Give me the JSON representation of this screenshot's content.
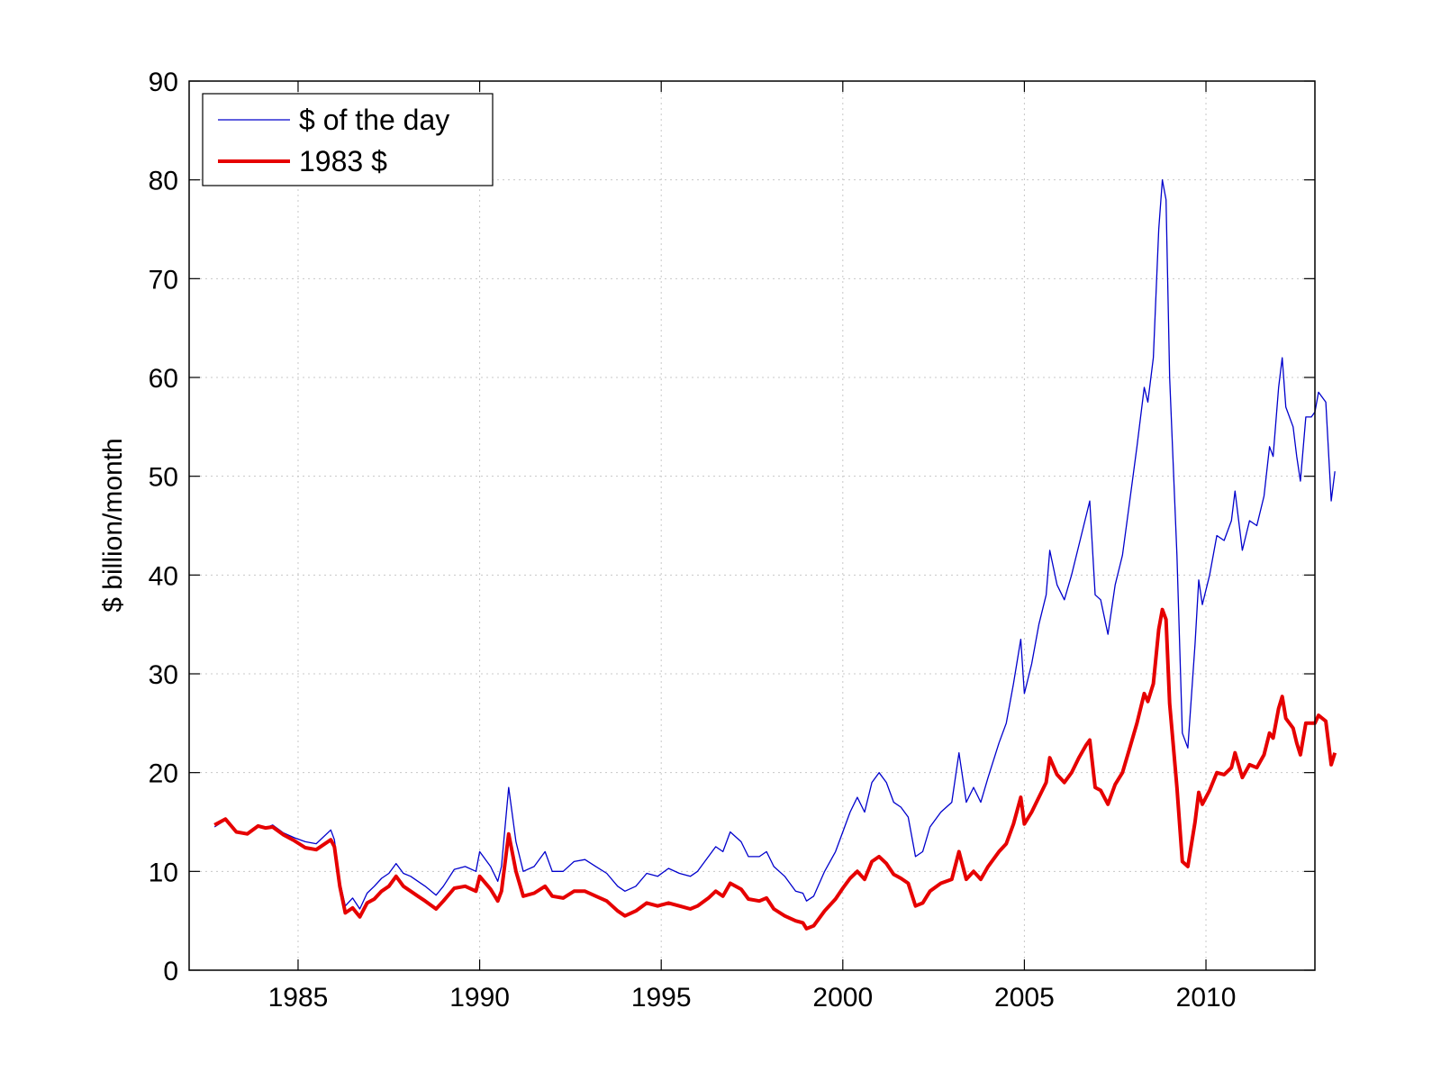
{
  "chart_data": {
    "type": "line",
    "title": "",
    "xlabel": "",
    "ylabel": "$ billion/month",
    "xlim": [
      1982.0,
      2013.0
    ],
    "ylim": [
      0,
      90
    ],
    "x_ticks": [
      1985,
      1990,
      1995,
      2000,
      2005,
      2010
    ],
    "y_ticks": [
      0,
      10,
      20,
      30,
      40,
      50,
      60,
      70,
      80,
      90
    ],
    "grid": true,
    "legend_position": "top-left",
    "colors": {
      "nominal": "#0000cc",
      "real": "#e60000",
      "axis": "#000000"
    },
    "series": [
      {
        "name": "$ of the day",
        "color": "#0000cc",
        "points": [
          [
            1982.7,
            14.5
          ],
          [
            1983.0,
            15.2
          ],
          [
            1983.3,
            14.0
          ],
          [
            1983.6,
            13.8
          ],
          [
            1983.9,
            14.6
          ],
          [
            1984.1,
            14.4
          ],
          [
            1984.3,
            14.7
          ],
          [
            1984.6,
            13.9
          ],
          [
            1984.9,
            13.4
          ],
          [
            1985.2,
            13.0
          ],
          [
            1985.5,
            12.8
          ],
          [
            1985.9,
            14.2
          ],
          [
            1986.0,
            13.2
          ],
          [
            1986.15,
            9.0
          ],
          [
            1986.3,
            6.5
          ],
          [
            1986.5,
            7.3
          ],
          [
            1986.7,
            6.2
          ],
          [
            1986.9,
            7.8
          ],
          [
            1987.1,
            8.5
          ],
          [
            1987.3,
            9.3
          ],
          [
            1987.5,
            9.8
          ],
          [
            1987.7,
            10.8
          ],
          [
            1987.9,
            9.8
          ],
          [
            1988.1,
            9.5
          ],
          [
            1988.3,
            9.0
          ],
          [
            1988.5,
            8.5
          ],
          [
            1988.8,
            7.6
          ],
          [
            1989.0,
            8.5
          ],
          [
            1989.3,
            10.2
          ],
          [
            1989.6,
            10.5
          ],
          [
            1989.9,
            10.0
          ],
          [
            1990.0,
            12.0
          ],
          [
            1990.3,
            10.5
          ],
          [
            1990.5,
            9.0
          ],
          [
            1990.6,
            10.5
          ],
          [
            1990.8,
            18.5
          ],
          [
            1991.0,
            13.0
          ],
          [
            1991.2,
            10.0
          ],
          [
            1991.5,
            10.5
          ],
          [
            1991.8,
            12.0
          ],
          [
            1992.0,
            10.0
          ],
          [
            1992.3,
            10.0
          ],
          [
            1992.6,
            11.0
          ],
          [
            1992.9,
            11.2
          ],
          [
            1993.2,
            10.5
          ],
          [
            1993.5,
            9.8
          ],
          [
            1993.8,
            8.5
          ],
          [
            1994.0,
            8.0
          ],
          [
            1994.3,
            8.5
          ],
          [
            1994.6,
            9.8
          ],
          [
            1994.9,
            9.5
          ],
          [
            1995.2,
            10.3
          ],
          [
            1995.5,
            9.8
          ],
          [
            1995.8,
            9.5
          ],
          [
            1996.0,
            10.0
          ],
          [
            1996.3,
            11.5
          ],
          [
            1996.5,
            12.5
          ],
          [
            1996.7,
            12.0
          ],
          [
            1996.9,
            14.0
          ],
          [
            1997.2,
            13.0
          ],
          [
            1997.4,
            11.5
          ],
          [
            1997.7,
            11.5
          ],
          [
            1997.9,
            12.0
          ],
          [
            1998.1,
            10.5
          ],
          [
            1998.4,
            9.5
          ],
          [
            1998.7,
            8.0
          ],
          [
            1998.9,
            7.8
          ],
          [
            1999.0,
            7.0
          ],
          [
            1999.2,
            7.5
          ],
          [
            1999.5,
            10.0
          ],
          [
            1999.8,
            12.0
          ],
          [
            2000.0,
            14.0
          ],
          [
            2000.2,
            16.0
          ],
          [
            2000.4,
            17.5
          ],
          [
            2000.6,
            16.0
          ],
          [
            2000.8,
            19.0
          ],
          [
            2001.0,
            20.0
          ],
          [
            2001.2,
            19.0
          ],
          [
            2001.4,
            17.0
          ],
          [
            2001.6,
            16.5
          ],
          [
            2001.8,
            15.5
          ],
          [
            2002.0,
            11.5
          ],
          [
            2002.2,
            12.0
          ],
          [
            2002.4,
            14.5
          ],
          [
            2002.7,
            16.0
          ],
          [
            2003.0,
            17.0
          ],
          [
            2003.2,
            22.0
          ],
          [
            2003.4,
            17.0
          ],
          [
            2003.6,
            18.5
          ],
          [
            2003.8,
            17.0
          ],
          [
            2004.0,
            19.5
          ],
          [
            2004.3,
            23.0
          ],
          [
            2004.5,
            25.0
          ],
          [
            2004.7,
            29.0
          ],
          [
            2004.9,
            33.5
          ],
          [
            2005.0,
            28.0
          ],
          [
            2005.2,
            31.0
          ],
          [
            2005.4,
            35.0
          ],
          [
            2005.6,
            38.0
          ],
          [
            2005.7,
            42.5
          ],
          [
            2005.9,
            39.0
          ],
          [
            2006.1,
            37.5
          ],
          [
            2006.3,
            40.0
          ],
          [
            2006.5,
            43.0
          ],
          [
            2006.7,
            46.0
          ],
          [
            2006.8,
            47.5
          ],
          [
            2006.95,
            38.0
          ],
          [
            2007.1,
            37.5
          ],
          [
            2007.3,
            34.0
          ],
          [
            2007.5,
            39.0
          ],
          [
            2007.7,
            42.0
          ],
          [
            2007.9,
            47.5
          ],
          [
            2008.1,
            53.0
          ],
          [
            2008.3,
            59.0
          ],
          [
            2008.4,
            57.5
          ],
          [
            2008.55,
            62.0
          ],
          [
            2008.7,
            75.0
          ],
          [
            2008.8,
            80.0
          ],
          [
            2008.9,
            78.0
          ],
          [
            2009.0,
            60.0
          ],
          [
            2009.2,
            42.0
          ],
          [
            2009.35,
            24.0
          ],
          [
            2009.5,
            22.5
          ],
          [
            2009.7,
            33.0
          ],
          [
            2009.8,
            39.5
          ],
          [
            2009.9,
            37.0
          ],
          [
            2010.1,
            40.0
          ],
          [
            2010.3,
            44.0
          ],
          [
            2010.5,
            43.5
          ],
          [
            2010.7,
            45.5
          ],
          [
            2010.8,
            48.5
          ],
          [
            2011.0,
            42.5
          ],
          [
            2011.2,
            45.5
          ],
          [
            2011.4,
            45.0
          ],
          [
            2011.6,
            48.0
          ],
          [
            2011.75,
            53.0
          ],
          [
            2011.85,
            52.0
          ],
          [
            2012.0,
            59.0
          ],
          [
            2012.1,
            62.0
          ],
          [
            2012.2,
            57.0
          ],
          [
            2012.4,
            55.0
          ],
          [
            2012.5,
            52.0
          ],
          [
            2012.6,
            49.5
          ],
          [
            2012.75,
            56.0
          ],
          [
            2012.9,
            56.0
          ],
          [
            2013.0,
            56.5
          ],
          [
            2013.1,
            58.5
          ],
          [
            2013.3,
            57.5
          ],
          [
            2013.45,
            47.5
          ],
          [
            2013.55,
            50.5
          ]
        ]
      },
      {
        "name": "1983 $",
        "color": "#e60000",
        "points": [
          [
            1982.7,
            14.7
          ],
          [
            1983.0,
            15.3
          ],
          [
            1983.3,
            14.0
          ],
          [
            1983.6,
            13.8
          ],
          [
            1983.9,
            14.6
          ],
          [
            1984.1,
            14.4
          ],
          [
            1984.3,
            14.5
          ],
          [
            1984.6,
            13.7
          ],
          [
            1984.9,
            13.1
          ],
          [
            1985.2,
            12.4
          ],
          [
            1985.5,
            12.2
          ],
          [
            1985.9,
            13.2
          ],
          [
            1986.0,
            12.5
          ],
          [
            1986.15,
            8.5
          ],
          [
            1986.3,
            5.8
          ],
          [
            1986.5,
            6.3
          ],
          [
            1986.7,
            5.4
          ],
          [
            1986.9,
            6.8
          ],
          [
            1987.1,
            7.2
          ],
          [
            1987.3,
            8.0
          ],
          [
            1987.5,
            8.5
          ],
          [
            1987.7,
            9.5
          ],
          [
            1987.9,
            8.5
          ],
          [
            1988.1,
            8.0
          ],
          [
            1988.3,
            7.5
          ],
          [
            1988.5,
            7.0
          ],
          [
            1988.8,
            6.2
          ],
          [
            1989.0,
            7.0
          ],
          [
            1989.3,
            8.3
          ],
          [
            1989.6,
            8.5
          ],
          [
            1989.9,
            8.0
          ],
          [
            1990.0,
            9.5
          ],
          [
            1990.3,
            8.2
          ],
          [
            1990.5,
            7.0
          ],
          [
            1990.6,
            8.0
          ],
          [
            1990.8,
            13.8
          ],
          [
            1991.0,
            10.0
          ],
          [
            1991.2,
            7.5
          ],
          [
            1991.5,
            7.8
          ],
          [
            1991.8,
            8.5
          ],
          [
            1992.0,
            7.5
          ],
          [
            1992.3,
            7.3
          ],
          [
            1992.6,
            8.0
          ],
          [
            1992.9,
            8.0
          ],
          [
            1993.2,
            7.5
          ],
          [
            1993.5,
            7.0
          ],
          [
            1993.8,
            6.0
          ],
          [
            1994.0,
            5.5
          ],
          [
            1994.3,
            6.0
          ],
          [
            1994.6,
            6.8
          ],
          [
            1994.9,
            6.5
          ],
          [
            1995.2,
            6.8
          ],
          [
            1995.5,
            6.5
          ],
          [
            1995.8,
            6.2
          ],
          [
            1996.0,
            6.5
          ],
          [
            1996.3,
            7.3
          ],
          [
            1996.5,
            8.0
          ],
          [
            1996.7,
            7.5
          ],
          [
            1996.9,
            8.8
          ],
          [
            1997.2,
            8.2
          ],
          [
            1997.4,
            7.2
          ],
          [
            1997.7,
            7.0
          ],
          [
            1997.9,
            7.3
          ],
          [
            1998.1,
            6.2
          ],
          [
            1998.4,
            5.5
          ],
          [
            1998.7,
            5.0
          ],
          [
            1998.9,
            4.8
          ],
          [
            1999.0,
            4.2
          ],
          [
            1999.2,
            4.5
          ],
          [
            1999.5,
            6.0
          ],
          [
            1999.8,
            7.2
          ],
          [
            2000.0,
            8.3
          ],
          [
            2000.2,
            9.3
          ],
          [
            2000.4,
            10.0
          ],
          [
            2000.6,
            9.2
          ],
          [
            2000.8,
            11.0
          ],
          [
            2001.0,
            11.5
          ],
          [
            2001.2,
            10.8
          ],
          [
            2001.4,
            9.7
          ],
          [
            2001.6,
            9.3
          ],
          [
            2001.8,
            8.8
          ],
          [
            2002.0,
            6.5
          ],
          [
            2002.2,
            6.8
          ],
          [
            2002.4,
            8.0
          ],
          [
            2002.7,
            8.8
          ],
          [
            2003.0,
            9.2
          ],
          [
            2003.2,
            12.0
          ],
          [
            2003.4,
            9.2
          ],
          [
            2003.6,
            10.0
          ],
          [
            2003.8,
            9.2
          ],
          [
            2004.0,
            10.5
          ],
          [
            2004.3,
            12.0
          ],
          [
            2004.5,
            12.8
          ],
          [
            2004.7,
            14.8
          ],
          [
            2004.9,
            17.5
          ],
          [
            2005.0,
            14.8
          ],
          [
            2005.2,
            16.0
          ],
          [
            2005.4,
            17.5
          ],
          [
            2005.6,
            19.0
          ],
          [
            2005.7,
            21.5
          ],
          [
            2005.9,
            19.8
          ],
          [
            2006.1,
            19.0
          ],
          [
            2006.3,
            20.0
          ],
          [
            2006.5,
            21.5
          ],
          [
            2006.7,
            22.8
          ],
          [
            2006.8,
            23.3
          ],
          [
            2006.95,
            18.5
          ],
          [
            2007.1,
            18.2
          ],
          [
            2007.3,
            16.8
          ],
          [
            2007.5,
            18.8
          ],
          [
            2007.7,
            20.0
          ],
          [
            2007.9,
            22.5
          ],
          [
            2008.1,
            25.0
          ],
          [
            2008.3,
            28.0
          ],
          [
            2008.4,
            27.2
          ],
          [
            2008.55,
            29.0
          ],
          [
            2008.7,
            34.5
          ],
          [
            2008.8,
            36.5
          ],
          [
            2008.9,
            35.5
          ],
          [
            2009.0,
            27.0
          ],
          [
            2009.2,
            18.5
          ],
          [
            2009.35,
            11.0
          ],
          [
            2009.5,
            10.5
          ],
          [
            2009.7,
            15.0
          ],
          [
            2009.8,
            18.0
          ],
          [
            2009.9,
            16.8
          ],
          [
            2010.1,
            18.2
          ],
          [
            2010.3,
            20.0
          ],
          [
            2010.5,
            19.8
          ],
          [
            2010.7,
            20.5
          ],
          [
            2010.8,
            22.0
          ],
          [
            2011.0,
            19.5
          ],
          [
            2011.2,
            20.8
          ],
          [
            2011.4,
            20.5
          ],
          [
            2011.6,
            21.8
          ],
          [
            2011.75,
            24.0
          ],
          [
            2011.85,
            23.5
          ],
          [
            2012.0,
            26.5
          ],
          [
            2012.1,
            27.7
          ],
          [
            2012.2,
            25.5
          ],
          [
            2012.4,
            24.5
          ],
          [
            2012.5,
            23.0
          ],
          [
            2012.6,
            21.8
          ],
          [
            2012.75,
            25.0
          ],
          [
            2012.9,
            25.0
          ],
          [
            2013.0,
            25.0
          ],
          [
            2013.1,
            25.8
          ],
          [
            2013.3,
            25.2
          ],
          [
            2013.45,
            20.8
          ],
          [
            2013.55,
            22.0
          ]
        ]
      }
    ]
  }
}
